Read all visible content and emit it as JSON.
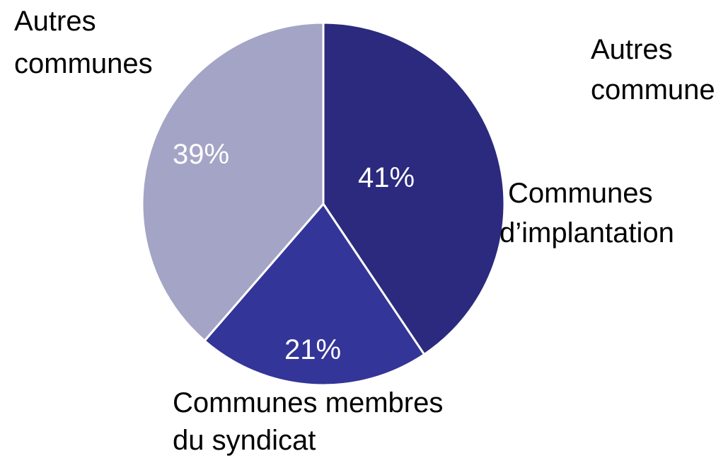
{
  "chart_data": {
    "type": "pie",
    "categories": [
      "Communes d’implantation",
      "Communes membres du syndicat",
      "Autres communes"
    ],
    "values": [
      41,
      21,
      39
    ],
    "value_labels": [
      "41%",
      "21%",
      "39%"
    ],
    "colors": [
      "#2b2a7e",
      "#343598",
      "#a4a4c6"
    ],
    "start_angle_deg": 0,
    "direction": "clockwise",
    "separator_color": "#ffffff",
    "title": "",
    "legend": "none"
  },
  "labels": {
    "autres_left_line1": "Autres",
    "autres_left_line2": "communes",
    "autres_right_line1": "Autres",
    "autres_right_line2": "communes",
    "implantation_line1": "Communes",
    "implantation_line2": "d’implantation",
    "membres_line1": "Communes membres",
    "membres_line2": "du syndicat"
  }
}
